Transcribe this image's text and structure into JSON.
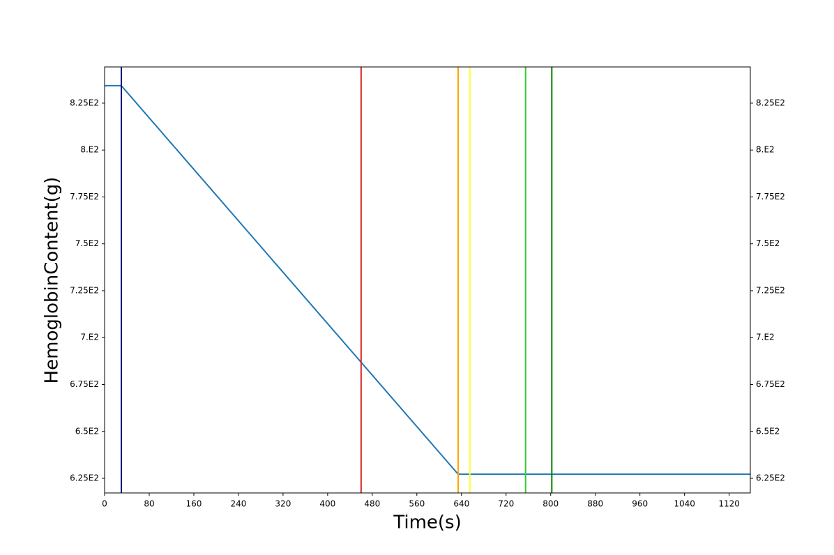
{
  "chart_data": {
    "type": "line",
    "x_label": "Time(s)",
    "y_label": "HemoglobinContent(g)",
    "x": [
      0,
      30,
      634,
      1158
    ],
    "series": [
      {
        "name": "HemoglobinContent",
        "color": "#1f77b4",
        "values": [
          834.3,
          834.3,
          627.2,
          627.2
        ]
      }
    ],
    "vlines": [
      {
        "x": 30,
        "color": "#000080"
      },
      {
        "x": 460,
        "color": "#d62728"
      },
      {
        "x": 634,
        "color": "#ffa500"
      },
      {
        "x": 655,
        "color": "#ffff33"
      },
      {
        "x": 755,
        "color": "#32cd32"
      },
      {
        "x": 802,
        "color": "#008000"
      }
    ],
    "xlim": [
      0,
      1158
    ],
    "xticks": [
      0,
      80,
      160,
      240,
      320,
      400,
      480,
      560,
      640,
      720,
      800,
      880,
      960,
      1040,
      1120
    ],
    "ylim": [
      617.2,
      844.3
    ],
    "yticks": [
      {
        "value": 625,
        "label": "6.25E2"
      },
      {
        "value": 650,
        "label": "6.5E2"
      },
      {
        "value": 675,
        "label": "6.75E2"
      },
      {
        "value": 700,
        "label": "7.E2"
      },
      {
        "value": 725,
        "label": "7.25E2"
      },
      {
        "value": 750,
        "label": "7.5E2"
      },
      {
        "value": 775,
        "label": "7.75E2"
      },
      {
        "value": 800,
        "label": "8.E2"
      },
      {
        "value": 825,
        "label": "8.25E2"
      }
    ],
    "grid": false
  }
}
